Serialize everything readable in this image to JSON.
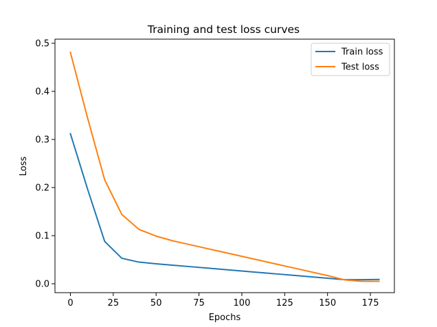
{
  "chart_data": {
    "type": "line",
    "title": "Training and test loss curves",
    "xlabel": "Epochs",
    "ylabel": "Loss",
    "xlim": [
      -9,
      189
    ],
    "ylim": [
      -0.0185,
      0.5085
    ],
    "xticks": [
      0,
      25,
      50,
      75,
      100,
      125,
      150,
      175
    ],
    "xtick_labels": [
      "0",
      "25",
      "50",
      "75",
      "100",
      "125",
      "150",
      "175"
    ],
    "yticks": [
      0.0,
      0.1,
      0.2,
      0.3,
      0.4,
      0.5
    ],
    "ytick_labels": [
      "0.0",
      "0.1",
      "0.2",
      "0.3",
      "0.4",
      "0.5"
    ],
    "grid": false,
    "legend_position": "upper right",
    "x": [
      0,
      10,
      20,
      30,
      40,
      50,
      60,
      70,
      80,
      90,
      100,
      110,
      120,
      130,
      140,
      150,
      160,
      170,
      180
    ],
    "series": [
      {
        "name": "Train loss",
        "color": "#1f77b4",
        "values": [
          0.312,
          0.197,
          0.088,
          0.053,
          0.045,
          0.0415,
          0.0385,
          0.0355,
          0.0325,
          0.0295,
          0.0265,
          0.0235,
          0.0205,
          0.0175,
          0.0145,
          0.0115,
          0.0085,
          0.0085,
          0.009
        ]
      },
      {
        "name": "Test loss",
        "color": "#ff7f0e",
        "values": [
          0.481,
          0.345,
          0.216,
          0.144,
          0.113,
          0.099,
          0.089,
          0.081,
          0.073,
          0.065,
          0.057,
          0.049,
          0.041,
          0.033,
          0.025,
          0.017,
          0.008,
          0.005,
          0.005
        ]
      }
    ]
  }
}
